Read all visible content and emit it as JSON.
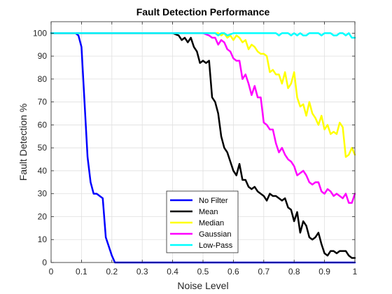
{
  "chart_data": {
    "type": "line",
    "title": "Fault Detection Performance",
    "xlabel": "Noise Level",
    "ylabel": "Fault Detection %",
    "xlim": [
      0,
      1
    ],
    "ylim": [
      0,
      105
    ],
    "xticks": [
      0,
      0.1,
      0.2,
      0.3,
      0.4,
      0.5,
      0.6,
      0.7,
      0.8,
      0.9,
      1
    ],
    "xtick_labels": [
      "0",
      "0.1",
      "0.2",
      "0.3",
      "0.4",
      "0.5",
      "0.6",
      "0.7",
      "0.8",
      "0.9",
      "1"
    ],
    "yticks": [
      0,
      10,
      20,
      30,
      40,
      50,
      60,
      70,
      80,
      90,
      100
    ],
    "ytick_labels": [
      "0",
      "10",
      "20",
      "30",
      "40",
      "50",
      "60",
      "70",
      "80",
      "90",
      "100"
    ],
    "grid": true,
    "legend_position": "bottom-center",
    "series": [
      {
        "name": "No Filter",
        "color": "#0000ff",
        "x": [
          0,
          0.08,
          0.09,
          0.1,
          0.11,
          0.12,
          0.13,
          0.14,
          0.15,
          0.16,
          0.17,
          0.18,
          0.19,
          0.2,
          0.21,
          0.25,
          0.3,
          0.4,
          0.5,
          0.6,
          0.7,
          0.8,
          0.9,
          1
        ],
        "y": [
          100,
          100,
          99,
          94,
          70,
          46,
          35,
          30,
          30,
          29,
          28,
          11,
          7,
          3,
          0,
          0,
          0,
          0,
          0,
          0,
          0,
          0,
          0,
          0
        ]
      },
      {
        "name": "Mean",
        "color": "#000000",
        "x": [
          0,
          0.4,
          0.42,
          0.43,
          0.44,
          0.45,
          0.46,
          0.47,
          0.48,
          0.49,
          0.5,
          0.51,
          0.52,
          0.53,
          0.54,
          0.55,
          0.56,
          0.57,
          0.58,
          0.59,
          0.6,
          0.61,
          0.62,
          0.63,
          0.64,
          0.65,
          0.66,
          0.67,
          0.68,
          0.69,
          0.7,
          0.71,
          0.72,
          0.73,
          0.74,
          0.75,
          0.76,
          0.77,
          0.78,
          0.79,
          0.8,
          0.81,
          0.82,
          0.83,
          0.84,
          0.85,
          0.86,
          0.87,
          0.88,
          0.89,
          0.9,
          0.91,
          0.92,
          0.93,
          0.94,
          0.95,
          0.96,
          0.97,
          0.98,
          0.99,
          1.0
        ],
        "y": [
          100,
          100,
          99,
          97,
          98,
          96,
          98,
          94,
          92,
          87,
          88,
          87,
          88,
          72,
          70,
          65,
          55,
          50,
          48,
          44,
          40,
          38,
          43,
          36,
          36,
          33,
          32,
          33,
          31,
          30,
          29,
          27,
          30,
          29,
          29,
          28,
          27,
          28,
          24,
          23,
          18,
          22,
          13,
          18,
          16,
          11,
          10,
          11,
          13,
          8,
          4,
          3,
          5,
          5,
          4,
          5,
          5,
          5,
          3,
          2,
          2
        ]
      },
      {
        "name": "Median",
        "color": "#ffff00",
        "x": [
          0,
          0.55,
          0.56,
          0.57,
          0.58,
          0.59,
          0.6,
          0.61,
          0.62,
          0.63,
          0.64,
          0.65,
          0.66,
          0.67,
          0.68,
          0.69,
          0.7,
          0.71,
          0.72,
          0.73,
          0.74,
          0.75,
          0.76,
          0.77,
          0.78,
          0.79,
          0.8,
          0.81,
          0.82,
          0.83,
          0.84,
          0.85,
          0.86,
          0.87,
          0.88,
          0.89,
          0.9,
          0.91,
          0.92,
          0.93,
          0.94,
          0.95,
          0.96,
          0.97,
          0.98,
          0.99,
          1.0
        ],
        "y": [
          100,
          100,
          99,
          100,
          98,
          99,
          97,
          99,
          98,
          96,
          97,
          93,
          95,
          94,
          92,
          91,
          91,
          90,
          83,
          84,
          82,
          82,
          78,
          83,
          76,
          78,
          83,
          72,
          68,
          69,
          64,
          70,
          65,
          63,
          60,
          64,
          58,
          60,
          56,
          57,
          56,
          61,
          59,
          46,
          47,
          50,
          47
        ]
      },
      {
        "name": "Gaussian",
        "color": "#ff00ff",
        "x": [
          0,
          0.5,
          0.52,
          0.53,
          0.54,
          0.55,
          0.56,
          0.57,
          0.58,
          0.59,
          0.6,
          0.61,
          0.62,
          0.63,
          0.64,
          0.65,
          0.66,
          0.67,
          0.68,
          0.69,
          0.7,
          0.71,
          0.72,
          0.73,
          0.74,
          0.75,
          0.76,
          0.77,
          0.78,
          0.79,
          0.8,
          0.81,
          0.82,
          0.83,
          0.84,
          0.85,
          0.86,
          0.87,
          0.88,
          0.89,
          0.9,
          0.91,
          0.92,
          0.93,
          0.94,
          0.95,
          0.96,
          0.97,
          0.98,
          0.99,
          1.0
        ],
        "y": [
          100,
          100,
          99,
          98,
          98,
          95,
          97,
          96,
          93,
          92,
          89,
          88,
          88,
          80,
          82,
          78,
          73,
          77,
          72,
          72,
          61,
          60,
          58,
          58,
          52,
          48,
          50,
          47,
          45,
          44,
          42,
          38,
          39,
          40,
          38,
          35,
          34,
          35,
          35,
          31,
          30,
          32,
          31,
          29,
          30,
          29,
          28,
          30,
          26,
          26,
          30
        ]
      },
      {
        "name": "Low-Pass",
        "color": "#00ffff",
        "x": [
          0,
          0.54,
          0.55,
          0.56,
          0.57,
          0.58,
          0.6,
          0.65,
          0.7,
          0.74,
          0.75,
          0.76,
          0.77,
          0.78,
          0.79,
          0.8,
          0.81,
          0.82,
          0.83,
          0.84,
          0.85,
          0.86,
          0.87,
          0.88,
          0.89,
          0.9,
          0.91,
          0.92,
          0.93,
          0.94,
          0.95,
          0.96,
          0.97,
          0.98,
          0.99,
          1.0
        ],
        "y": [
          100,
          100,
          99,
          100,
          100,
          99,
          100,
          100,
          100,
          100,
          99,
          100,
          100,
          100,
          99,
          100,
          99,
          100,
          99,
          99,
          100,
          100,
          100,
          100,
          99,
          100,
          100,
          100,
          99,
          99,
          100,
          100,
          99,
          100,
          98,
          98
        ]
      }
    ]
  }
}
